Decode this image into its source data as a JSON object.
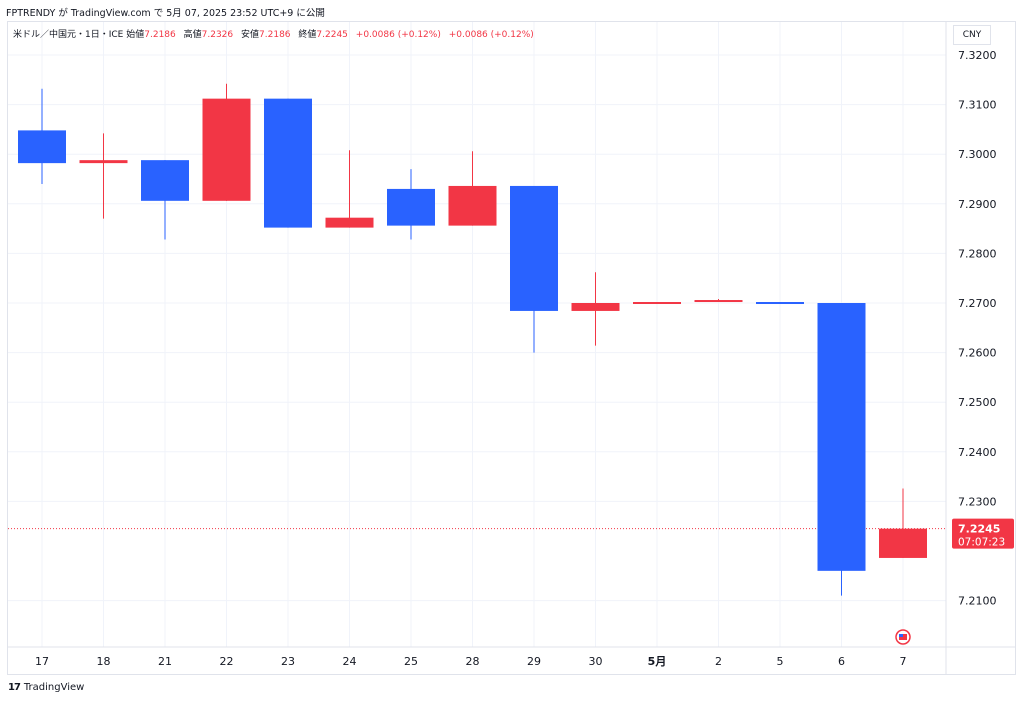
{
  "header": {
    "published_line": "FPTRENDY が TradingView.com で 5月 07, 2025 23:52 UTC+9 に公開"
  },
  "legend": {
    "symbol": "米ドル／中国元・1日・ICE",
    "open_label": "始値",
    "open_value": "7.2186",
    "high_label": "高値",
    "high_value": "7.2326",
    "low_label": "安値",
    "low_value": "7.2186",
    "close_label": "終値",
    "close_value": "7.2245",
    "change1": "+0.0086 (+0.12%)",
    "change2": "+0.0086 (+0.12%)"
  },
  "currency_label": "CNY",
  "price_label": {
    "price": "7.2245",
    "countdown": "07:07:23"
  },
  "footer": {
    "brand": "TradingView",
    "logo_text": "17"
  },
  "colors": {
    "up": "#2962ff",
    "down": "#f23645",
    "grid": "#f0f3fa",
    "axis_text": "#131722"
  },
  "icons": {
    "flag": "us-flag-icon"
  },
  "chart_data": {
    "type": "candlestick",
    "note_colors": "blue = down candle (USD weakening), red = up candle",
    "x_tick_labels": [
      "17",
      "18",
      "21",
      "22",
      "23",
      "24",
      "25",
      "28",
      "29",
      "30",
      "5月",
      "2",
      "5",
      "6",
      "7"
    ],
    "y_ticks": [
      "7.3200",
      "7.3100",
      "7.3000",
      "7.2900",
      "7.2800",
      "7.2700",
      "7.2600",
      "7.2500",
      "7.2400",
      "7.2300",
      "7.2100"
    ],
    "ylim": [
      7.2085,
      7.3232
    ],
    "last_price": 7.2245,
    "candles": [
      {
        "x": "17",
        "open": 7.3048,
        "high": 7.3132,
        "low": 7.294,
        "close": 7.2982
      },
      {
        "x": "18",
        "open": 7.2982,
        "high": 7.3042,
        "low": 7.287,
        "close": 7.2988
      },
      {
        "x": "21",
        "open": 7.2988,
        "high": 7.2988,
        "low": 7.2828,
        "close": 7.2906
      },
      {
        "x": "22",
        "open": 7.2906,
        "high": 7.3142,
        "low": 7.2906,
        "close": 7.3112
      },
      {
        "x": "23",
        "open": 7.3112,
        "high": 7.3112,
        "low": 7.2852,
        "close": 7.2852
      },
      {
        "x": "24",
        "open": 7.2852,
        "high": 7.3008,
        "low": 7.2852,
        "close": 7.2872
      },
      {
        "x": "25",
        "open": 7.293,
        "high": 7.297,
        "low": 7.2828,
        "close": 7.2856
      },
      {
        "x": "28",
        "open": 7.2856,
        "high": 7.3006,
        "low": 7.2856,
        "close": 7.2936
      },
      {
        "x": "29",
        "open": 7.2936,
        "high": 7.2936,
        "low": 7.26,
        "close": 7.2684
      },
      {
        "x": "30",
        "open": 7.2684,
        "high": 7.2762,
        "low": 7.2614,
        "close": 7.27
      },
      {
        "x": "5月",
        "open": 7.27,
        "high": 7.2702,
        "low": 7.27,
        "close": 7.2702
      },
      {
        "x": "2",
        "open": 7.2702,
        "high": 7.2708,
        "low": 7.2702,
        "close": 7.2706
      },
      {
        "x": "5",
        "open": 7.2702,
        "high": 7.2702,
        "low": 7.27,
        "close": 7.27
      },
      {
        "x": "6",
        "open": 7.27,
        "high": 7.27,
        "low": 7.211,
        "close": 7.216
      },
      {
        "x": "7",
        "open": 7.2186,
        "high": 7.2326,
        "low": 7.2186,
        "close": 7.2245
      }
    ]
  }
}
